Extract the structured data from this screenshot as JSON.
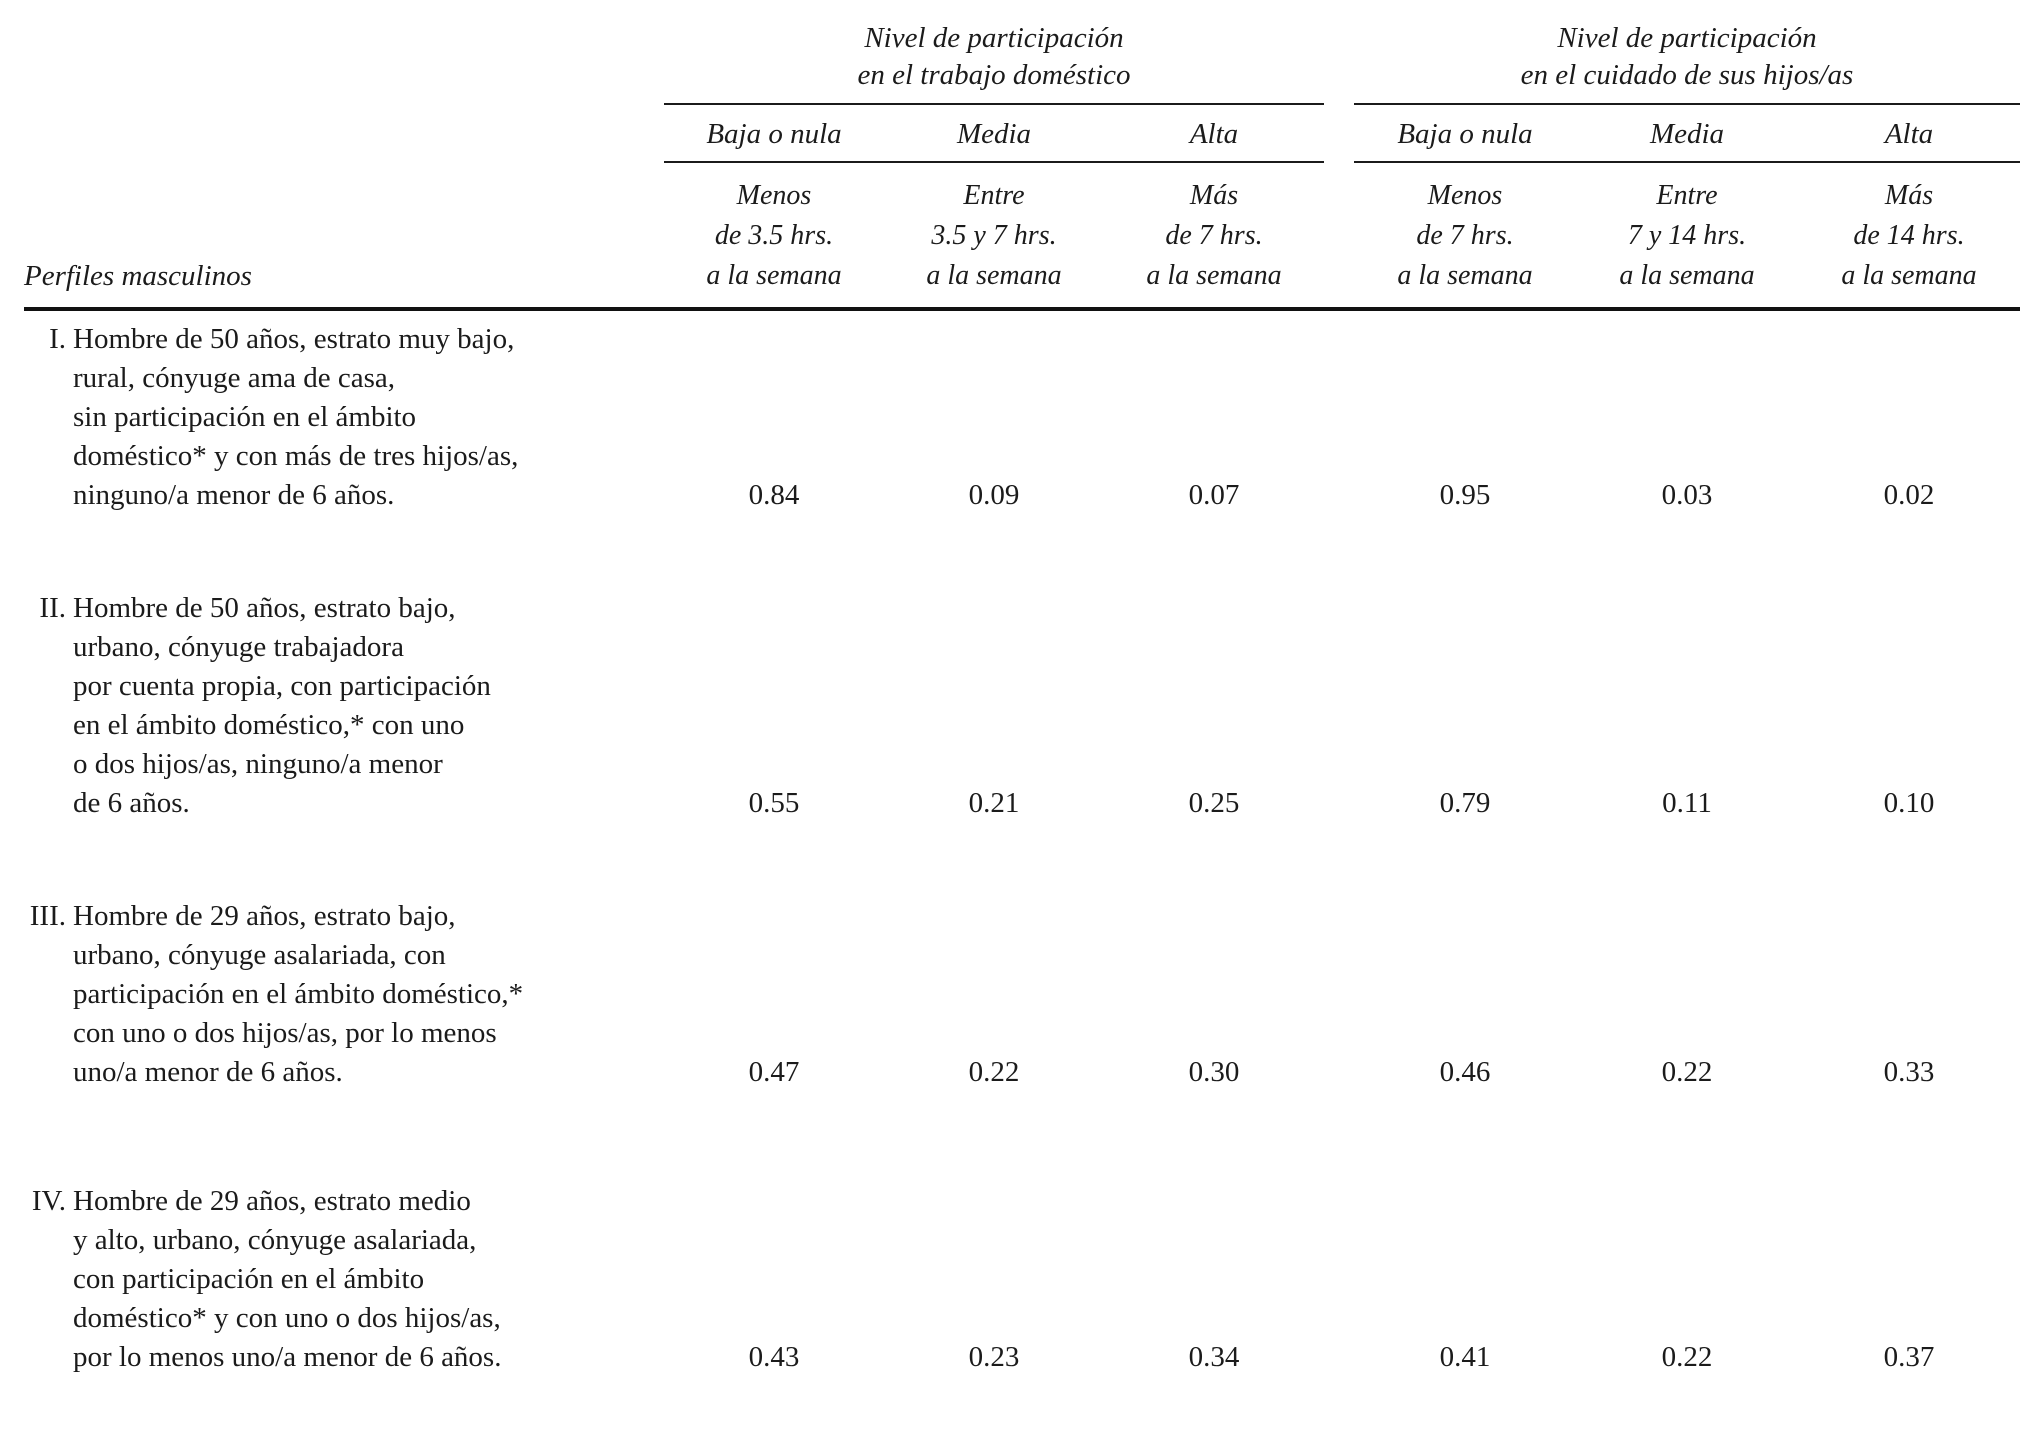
{
  "table": {
    "row_header_label": "Perfiles masculinos",
    "groups": [
      {
        "title_lines": [
          "Nivel de participación",
          "en el trabajo doméstico"
        ],
        "levels": [
          "Baja o nula",
          "Media",
          "Alta"
        ],
        "ranges": [
          [
            "Menos",
            "de 3.5 hrs.",
            "a la semana"
          ],
          [
            "Entre",
            "3.5 y 7 hrs.",
            "a la semana"
          ],
          [
            "Más",
            "de 7 hrs.",
            "a la semana"
          ]
        ]
      },
      {
        "title_lines": [
          "Nivel de participación",
          "en el cuidado de sus hijos/as"
        ],
        "levels": [
          "Baja o nula",
          "Media",
          "Alta"
        ],
        "ranges": [
          [
            "Menos",
            "de 7 hrs.",
            "a la semana"
          ],
          [
            "Entre",
            "7 y 14 hrs.",
            "a la semana"
          ],
          [
            "Más",
            "de 14 hrs.",
            "a la semana"
          ]
        ]
      }
    ],
    "rows": [
      {
        "numeral": "I.",
        "lines": [
          "Hombre de 50 años, estrato muy bajo,",
          "rural, cónyuge ama de casa,",
          "sin participación en el ámbito",
          "doméstico* y con más de tres hijos/as,",
          "ninguno/a menor de 6 años."
        ],
        "values": [
          "0.84",
          "0.09",
          "0.07",
          "0.95",
          "0.03",
          "0.02"
        ]
      },
      {
        "numeral": "II.",
        "lines": [
          "Hombre de 50 años, estrato bajo,",
          "urbano, cónyuge trabajadora",
          "por cuenta propia, con participación",
          "en el ámbito doméstico,* con uno",
          "o dos hijos/as, ninguno/a menor",
          "de 6 años."
        ],
        "values": [
          "0.55",
          "0.21",
          "0.25",
          "0.79",
          "0.11",
          "0.10"
        ]
      },
      {
        "numeral": "III.",
        "lines": [
          "Hombre de 29 años, estrato bajo,",
          "urbano, cónyuge asalariada, con",
          "participación en el ámbito doméstico,*",
          "con uno o dos hijos/as, por lo menos",
          "uno/a menor de 6 años."
        ],
        "values": [
          "0.47",
          "0.22",
          "0.30",
          "0.46",
          "0.22",
          "0.33"
        ]
      },
      {
        "numeral": "IV.",
        "lines": [
          "Hombre de 29 años, estrato medio",
          "y alto, urbano, cónyuge asalariada,",
          "con participación en el ámbito",
          "doméstico* y con uno o dos hijos/as,",
          "por lo menos uno/a menor de 6 años."
        ],
        "values": [
          "0.43",
          "0.23",
          "0.34",
          "0.41",
          "0.22",
          "0.37"
        ]
      }
    ]
  },
  "chart_data": {
    "type": "table",
    "title": "",
    "row_header": "Perfiles masculinos",
    "column_groups": [
      "Nivel de participación en el trabajo doméstico",
      "Nivel de participación en el cuidado de sus hijos/as"
    ],
    "columns": [
      "Baja o nula (Menos de 3.5 hrs. a la semana)",
      "Media (Entre 3.5 y 7 hrs. a la semana)",
      "Alta (Más de 7 hrs. a la semana)",
      "Baja o nula (Menos de 7 hrs. a la semana)",
      "Media (Entre 7 y 14 hrs. a la semana)",
      "Alta (Más de 14 hrs. a la semana)"
    ],
    "rows": [
      {
        "profile": "I. Hombre de 50 años, estrato muy bajo, rural, cónyuge ama de casa, sin participación en el ámbito doméstico* y con más de tres hijos/as, ninguno/a menor de 6 años.",
        "values": [
          0.84,
          0.09,
          0.07,
          0.95,
          0.03,
          0.02
        ]
      },
      {
        "profile": "II. Hombre de 50 años, estrato bajo, urbano, cónyuge trabajadora por cuenta propia, con participación en el ámbito doméstico,* con uno o dos hijos/as, ninguno/a menor de 6 años.",
        "values": [
          0.55,
          0.21,
          0.25,
          0.79,
          0.11,
          0.1
        ]
      },
      {
        "profile": "III. Hombre de 29 años, estrato bajo, urbano, cónyuge asalariada, con participación en el ámbito doméstico,* con uno o dos hijos/as, por lo menos uno/a menor de 6 años.",
        "values": [
          0.47,
          0.22,
          0.3,
          0.46,
          0.22,
          0.33
        ]
      },
      {
        "profile": "IV. Hombre de 29 años, estrato medio y alto, urbano, cónyuge asalariada, con participación en el ámbito doméstico* y con uno o dos hijos/as, por lo menos uno/a menor de 6 años.",
        "values": [
          0.43,
          0.23,
          0.34,
          0.41,
          0.22,
          0.37
        ]
      }
    ]
  }
}
